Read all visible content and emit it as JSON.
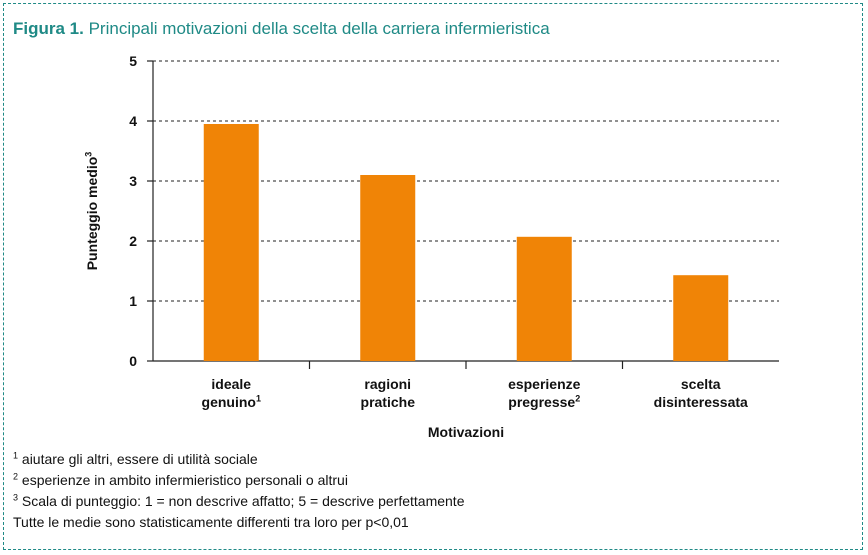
{
  "figure": {
    "label": "Figura 1.",
    "title": "Principali motivazioni della scelta della carriera infermieristica"
  },
  "chart_data": {
    "type": "bar",
    "title": "Principali motivazioni della scelta della carriera infermieristica",
    "ylabel": "Punteggio medio",
    "ylabel_sup": "3",
    "xlabel": "Motivazioni",
    "ylim": [
      0,
      5
    ],
    "yticks": [
      0,
      1,
      2,
      3,
      4,
      5
    ],
    "grid": true,
    "categories": [
      {
        "line1": "ideale",
        "line2": "genuino",
        "sup": "1"
      },
      {
        "line1": "ragioni",
        "line2": "pratiche",
        "sup": ""
      },
      {
        "line1": "esperienze",
        "line2": "pregresse",
        "sup": "2"
      },
      {
        "line1": "scelta",
        "line2": "disinteressata",
        "sup": ""
      }
    ],
    "values": [
      3.95,
      3.1,
      2.07,
      1.43
    ],
    "bar_color": "#f08406"
  },
  "footnotes": [
    {
      "sup": "1",
      "text": " aiutare gli altri, essere di utilità sociale"
    },
    {
      "sup": "2",
      "text": " esperienze in ambito infermieristico personali o altrui"
    },
    {
      "sup": "3",
      "text": " Scala di punteggio: 1 = non descrive affatto; 5 = descrive perfettamente"
    },
    {
      "sup": "",
      "text": "Tutte le medie sono statisticamente differenti tra loro per p<0,01"
    }
  ],
  "colors": {
    "accent": "#1f8a86",
    "bar": "#f08406"
  }
}
